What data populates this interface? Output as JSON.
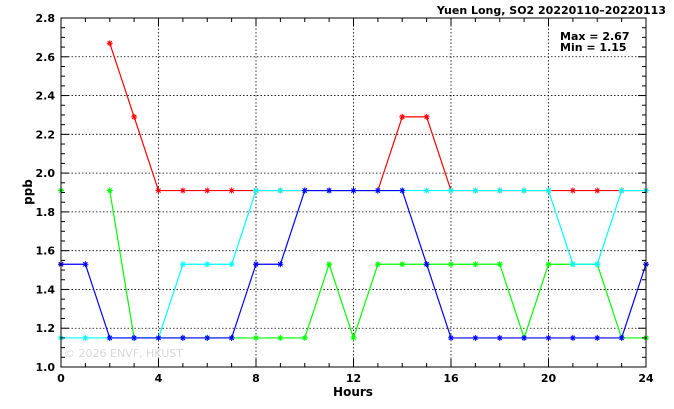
{
  "chart_data": {
    "type": "line",
    "title": "Yuen Long, SO2 20220110–20220113",
    "xlabel": "Hours",
    "ylabel": "ppb",
    "xlim": [
      0,
      24
    ],
    "ylim": [
      1.0,
      2.8
    ],
    "x_ticks": [
      "0",
      "4",
      "8",
      "12",
      "16",
      "20",
      "24"
    ],
    "y_ticks": [
      "1.0",
      "1.2",
      "1.4",
      "1.6",
      "1.8",
      "2.0",
      "2.2",
      "2.4",
      "2.6",
      "2.8"
    ],
    "grid": true,
    "annotations": {
      "max": "Max = 2.67",
      "min": "Min = 1.15"
    },
    "watermark": "© 2026  ENVF, HKUST",
    "x": [
      0,
      1,
      2,
      3,
      4,
      5,
      6,
      7,
      8,
      9,
      10,
      11,
      12,
      13,
      14,
      15,
      16,
      17,
      18,
      19,
      20,
      21,
      22,
      23,
      24
    ],
    "series": [
      {
        "color": "#ff0000",
        "values": [
          1.53,
          null,
          2.67,
          2.29,
          1.91,
          1.91,
          1.91,
          1.91,
          1.91,
          1.91,
          1.91,
          1.91,
          1.91,
          1.91,
          2.29,
          2.29,
          1.91,
          1.91,
          1.91,
          1.91,
          1.91,
          1.91,
          1.91,
          1.91,
          1.91
        ]
      },
      {
        "color": "#00ff00",
        "values": [
          1.91,
          null,
          1.91,
          1.15,
          1.15,
          1.15,
          1.15,
          1.15,
          1.15,
          1.15,
          1.15,
          1.53,
          1.15,
          1.53,
          1.53,
          1.53,
          1.53,
          1.53,
          1.53,
          1.15,
          1.53,
          1.53,
          1.53,
          1.15,
          1.15
        ]
      },
      {
        "color": "#00ffff",
        "values": [
          1.15,
          1.15,
          1.15,
          1.15,
          1.15,
          1.53,
          1.53,
          1.53,
          1.91,
          1.91,
          1.91,
          1.91,
          1.91,
          1.91,
          1.91,
          1.91,
          1.91,
          1.91,
          1.91,
          1.91,
          1.91,
          1.53,
          1.53,
          1.91,
          1.91
        ]
      },
      {
        "color": "#0000ff",
        "values": [
          1.53,
          1.53,
          1.15,
          1.15,
          1.15,
          1.15,
          1.15,
          1.15,
          1.53,
          1.53,
          1.91,
          1.91,
          1.91,
          1.91,
          1.91,
          1.53,
          1.15,
          1.15,
          1.15,
          1.15,
          1.15,
          1.15,
          1.15,
          1.15,
          1.53
        ]
      }
    ]
  }
}
